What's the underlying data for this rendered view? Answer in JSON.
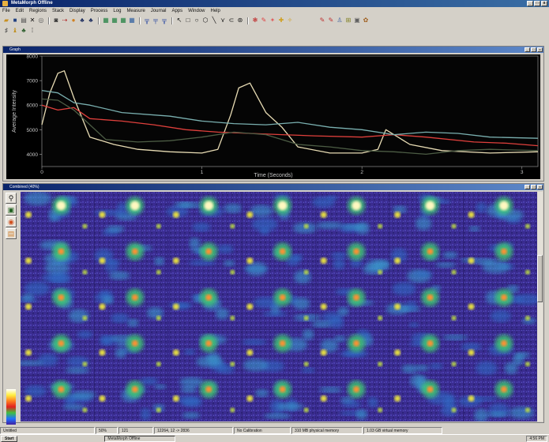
{
  "window": {
    "title": "MetaMorph Offline"
  },
  "menu": [
    "File",
    "Edit",
    "Regions",
    "Stack",
    "Display",
    "Process",
    "Log",
    "Measure",
    "Journal",
    "Apps",
    "Window",
    "Help"
  ],
  "toolbar1": [
    "open-icon",
    "save-icon",
    "print-icon",
    "cut-icon",
    "copy-icon",
    "camera-icon",
    "region-icon",
    "binoculars-icon",
    "stack-icon",
    "stack2-icon",
    "graph-icon",
    "graph2-icon",
    "graph3-icon",
    "filter-icon",
    "filter2-icon",
    "arrow-tool-icon",
    "rect-tool-icon",
    "ellipse-tool-icon",
    "circle-tool-icon",
    "line-tool-icon",
    "polyline-tool-icon",
    "trace-tool-icon",
    "palette-icon",
    "brush-icon",
    "eraser-icon",
    "paint-icon",
    "pencil-icon",
    "wand-icon",
    "stamp-icon",
    "flask-icon",
    "gear-icon"
  ],
  "toolbar2": [
    "tool-a-icon",
    "tool-b-icon",
    "tool-c-icon",
    "info-icon"
  ],
  "graph_window": {
    "title": "Graph"
  },
  "image_window": {
    "title": "Combined (40%)"
  },
  "chart_data": {
    "type": "line",
    "xlabel": "Time (Seconds)",
    "ylabel": "Average Intensity",
    "ylim": [
      3500,
      8000
    ],
    "xlim": [
      0,
      3.1
    ],
    "yticks": [
      "4000",
      "5000",
      "6000",
      "7000",
      "8000"
    ],
    "xticks": [
      "0",
      "1",
      "2",
      "3"
    ],
    "grid": false,
    "series": [
      {
        "color": "#e8dcb4",
        "x": [
          0,
          0.05,
          0.1,
          0.14,
          0.2,
          0.3,
          0.45,
          0.6,
          0.8,
          1.0,
          1.1,
          1.18,
          1.23,
          1.3,
          1.4,
          1.5,
          1.6,
          1.8,
          2.0,
          2.1,
          2.15,
          2.2,
          2.3,
          2.5,
          2.8,
          3.1
        ],
        "y": [
          5200,
          6500,
          7300,
          7400,
          6300,
          4700,
          4400,
          4200,
          4100,
          4050,
          4200,
          5600,
          6700,
          6900,
          5700,
          5100,
          4300,
          4050,
          4050,
          4200,
          5000,
          4800,
          4400,
          4150,
          4050,
          4100
        ]
      },
      {
        "color": "#e0403c",
        "x": [
          0,
          0.1,
          0.2,
          0.3,
          0.5,
          0.7,
          0.9,
          1.1,
          1.3,
          1.5,
          1.7,
          2.0,
          2.2,
          2.4,
          2.7,
          2.9,
          3.1
        ],
        "y": [
          6000,
          5800,
          5900,
          5450,
          5350,
          5200,
          5000,
          4900,
          4850,
          4800,
          4750,
          4700,
          4800,
          4700,
          4500,
          4450,
          4350
        ]
      },
      {
        "color": "#7ab0b0",
        "x": [
          0,
          0.1,
          0.2,
          0.3,
          0.5,
          0.8,
          1.0,
          1.2,
          1.4,
          1.6,
          1.8,
          2.0,
          2.2,
          2.4,
          2.6,
          2.8,
          3.1
        ],
        "y": [
          6600,
          6500,
          6100,
          6000,
          5700,
          5550,
          5350,
          5250,
          5200,
          5300,
          5100,
          5000,
          4800,
          4900,
          4850,
          4700,
          4650
        ]
      },
      {
        "color": "#4c5c44",
        "x": [
          0,
          0.1,
          0.2,
          0.3,
          0.4,
          0.6,
          0.8,
          1.0,
          1.2,
          1.4,
          1.6,
          1.8,
          2.0,
          2.2,
          2.4,
          2.6,
          2.8,
          3.1
        ],
        "y": [
          6250,
          6200,
          5800,
          5200,
          4600,
          4500,
          4550,
          4700,
          4900,
          4800,
          4400,
          4300,
          4150,
          4100,
          4000,
          4150,
          4200,
          4150
        ]
      }
    ]
  },
  "side_tools": [
    "magnifier-icon",
    "image-icon",
    "color-icon",
    "layers-icon"
  ],
  "status": [
    "Untitled",
    "50%",
    "121",
    "12264, 12 -> 2836",
    "No Calibration",
    "310 MB physical memory",
    "1.03 GB virtual memory"
  ],
  "taskbar": {
    "start": "Start",
    "task": "MetaMorph Offline",
    "tray": "4:56 PM"
  }
}
